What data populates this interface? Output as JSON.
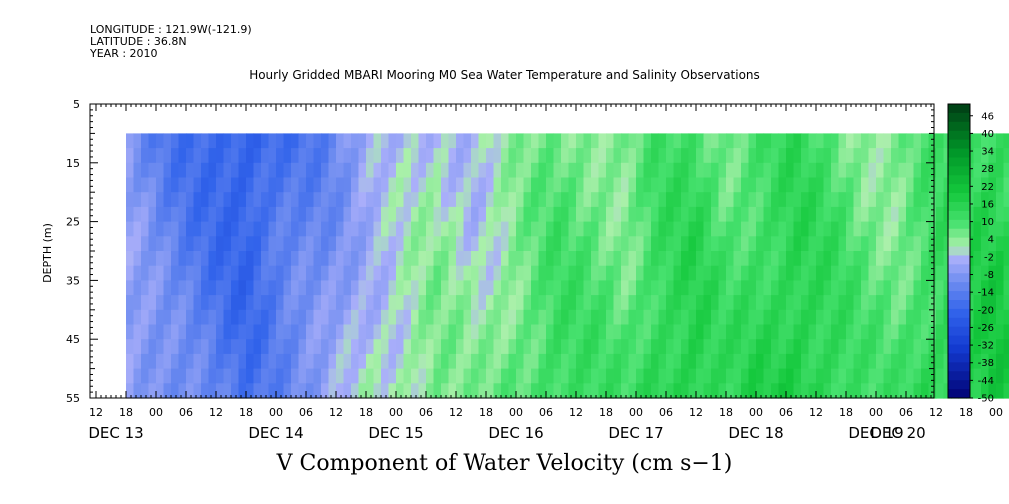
{
  "meta": {
    "longitude": "LONGITUDE : 121.9W(-121.9)",
    "latitude": "LATITUDE : 36.8N",
    "year": "YEAR : 2010"
  },
  "chart_data": {
    "type": "heatmap",
    "title": "Hourly Gridded MBARI Mooring M0 Sea Water Temperature and Salinity Observations",
    "xlabel": "V Component of Water Velocity (cm s−1)",
    "ylabel": "DEPTH (m)",
    "ylim": [
      55,
      5
    ],
    "y_ticks": [
      "5",
      "15",
      "25",
      "35",
      "45",
      "55"
    ],
    "x_hour_ticks": [
      "12",
      "18",
      "00",
      "06",
      "12",
      "18",
      "00",
      "06",
      "12",
      "18",
      "00",
      "06",
      "12",
      "18",
      "00",
      "06",
      "12",
      "18",
      "00",
      "06",
      "12",
      "18",
      "00",
      "06",
      "12",
      "18",
      "00",
      "06",
      "12",
      "18",
      "00",
      "06",
      "12"
    ],
    "x_day_labels": [
      "DEC 13",
      "DEC 14",
      "DEC 15",
      "DEC 16",
      "DEC 17",
      "DEC 18",
      "DEC 19",
      "DEC 20"
    ],
    "data_depth_range": [
      10,
      55
    ],
    "data_time_start": "DEC 13 18:00",
    "data_time_end": "DEC 20 12:00",
    "colorbar": {
      "labels": [
        "46",
        "40",
        "34",
        "28",
        "22",
        "16",
        "10",
        "4",
        "-2",
        "-8",
        "-14",
        "-20",
        "-26",
        "-32",
        "-38",
        "-44",
        "-50"
      ],
      "range": [
        -50,
        50
      ],
      "step": 3
    },
    "time_profile": [
      {
        "hour": 18,
        "value": -8
      },
      {
        "hour": 26,
        "value": -14
      },
      {
        "hour": 34,
        "value": -18
      },
      {
        "hour": 42,
        "value": -22
      },
      {
        "hour": 50,
        "value": -16
      },
      {
        "hour": 58,
        "value": -12
      },
      {
        "hour": 66,
        "value": -5
      },
      {
        "hour": 72,
        "value": -3
      },
      {
        "hour": 80,
        "value": 1
      },
      {
        "hour": 88,
        "value": -2
      },
      {
        "hour": 96,
        "value": 3
      },
      {
        "hour": 104,
        "value": 8
      },
      {
        "hour": 112,
        "value": 6
      },
      {
        "hour": 118,
        "value": 4
      },
      {
        "hour": 124,
        "value": 10
      },
      {
        "hour": 132,
        "value": 12
      },
      {
        "hour": 138,
        "value": 7
      },
      {
        "hour": 144,
        "value": 10
      },
      {
        "hour": 152,
        "value": 13
      },
      {
        "hour": 160,
        "value": 9
      },
      {
        "hour": 166,
        "value": 5
      },
      {
        "hour": 172,
        "value": 4
      },
      {
        "hour": 178,
        "value": 9
      },
      {
        "hour": 184,
        "value": 11
      },
      {
        "hour": 192,
        "value": 15
      },
      {
        "hour": 198,
        "value": 10
      },
      {
        "hour": 204,
        "value": 4
      }
    ],
    "colors": {
      "positive": "#00aa44",
      "neutral": "#aab0ff",
      "negative": "#2255dd"
    }
  }
}
